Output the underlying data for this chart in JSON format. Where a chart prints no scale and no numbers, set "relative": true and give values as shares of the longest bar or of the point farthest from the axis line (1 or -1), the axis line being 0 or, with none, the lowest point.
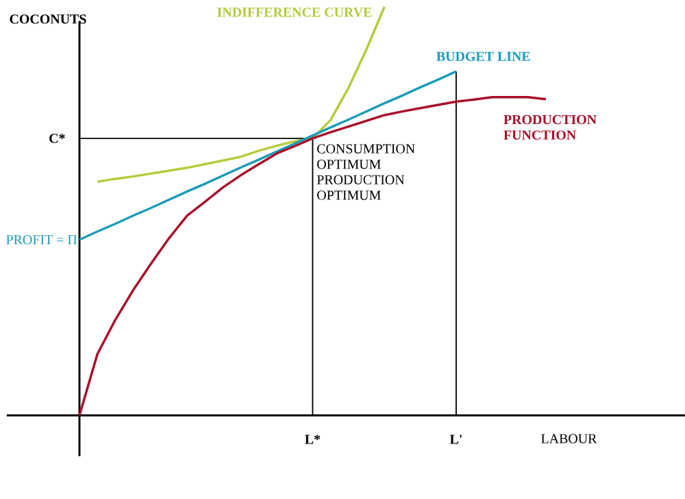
{
  "chart_data": {
    "type": "line",
    "relative": true,
    "xlabel": "LABOUR",
    "ylabel": "COCONUTS",
    "categories": [
      null,
      null,
      null,
      null,
      null,
      null,
      null,
      null,
      null,
      null,
      null,
      null,
      null,
      "L*",
      null,
      null,
      null,
      null,
      null,
      null,
      null,
      "L'",
      null,
      null,
      null,
      null,
      null,
      null
    ],
    "series": [
      {
        "name": "INDIFFERENCE CURVE",
        "color": "#b3cc3a",
        "values": [
          null,
          0.572,
          0.579,
          0.585,
          0.592,
          0.599,
          0.606,
          0.615,
          0.624,
          0.633,
          0.648,
          0.66,
          0.671,
          0.678,
          0.723,
          0.802,
          0.896,
          1.0,
          null,
          null,
          null,
          null,
          null,
          null,
          null,
          null,
          null,
          null
        ]
      },
      {
        "name": "BUDGET LINE",
        "color": "#1a9bb8",
        "values": [
          0.43,
          0.45,
          0.469,
          0.489,
          0.508,
          0.528,
          0.548,
          0.567,
          0.587,
          0.607,
          0.626,
          0.646,
          0.665,
          0.685,
          0.705,
          0.724,
          0.744,
          0.764,
          0.783,
          0.803,
          0.822,
          0.842,
          null,
          null,
          null,
          null,
          null,
          null
        ]
      },
      {
        "name": "PRODUCTION FUNCTION",
        "color": "#a8102a",
        "values": [
          0,
          0.15,
          0.234,
          0.307,
          0.372,
          0.434,
          0.489,
          0.523,
          0.558,
          0.588,
          0.615,
          0.641,
          0.659,
          0.678,
          0.693,
          0.707,
          0.721,
          0.735,
          0.744,
          0.752,
          0.76,
          0.768,
          0.773,
          0.779,
          0.779,
          0.779,
          0.774,
          null
        ]
      }
    ],
    "ref_lines": [
      {
        "axis": "x",
        "value": "L*"
      },
      {
        "axis": "x",
        "value": "L'"
      },
      {
        "axis": "y",
        "value": 0.678,
        "label": "C*"
      }
    ],
    "annotations": [
      "PROFIT = Π",
      {
        "text": "CONSUMPTION OPTIMUM PRODUCTION OPTIMUM",
        "x": "L*",
        "y": 0.678
      }
    ]
  }
}
